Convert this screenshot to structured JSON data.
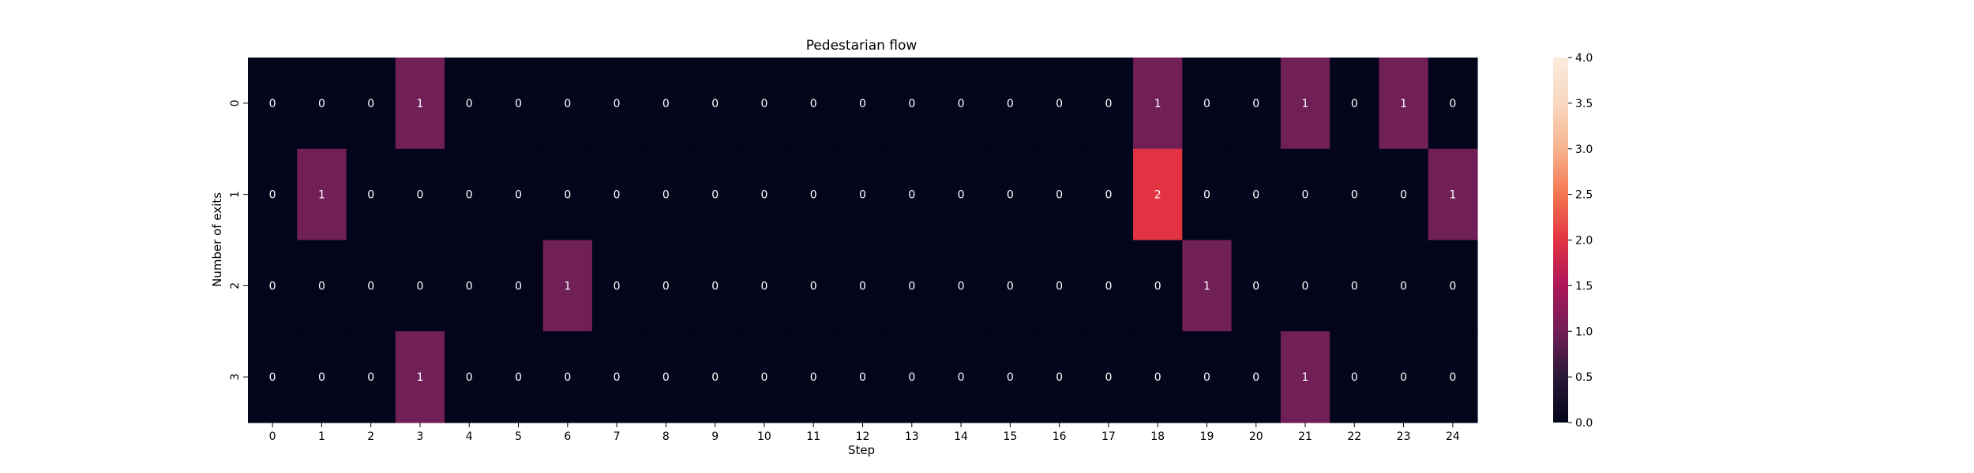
{
  "chart_data": {
    "type": "heatmap",
    "title": "Pedestarian flow",
    "xlabel": "Step",
    "ylabel": "Number of exits",
    "x_categories": [
      "0",
      "1",
      "2",
      "3",
      "4",
      "5",
      "6",
      "7",
      "8",
      "9",
      "10",
      "11",
      "12",
      "13",
      "14",
      "15",
      "16",
      "17",
      "18",
      "19",
      "20",
      "21",
      "22",
      "23",
      "24"
    ],
    "y_categories": [
      "0",
      "1",
      "2",
      "3"
    ],
    "values": [
      [
        0,
        0,
        0,
        1,
        0,
        0,
        0,
        0,
        0,
        0,
        0,
        0,
        0,
        0,
        0,
        0,
        0,
        0,
        1,
        0,
        0,
        1,
        0,
        1,
        0
      ],
      [
        0,
        1,
        0,
        0,
        0,
        0,
        0,
        0,
        0,
        0,
        0,
        0,
        0,
        0,
        0,
        0,
        0,
        0,
        2,
        0,
        0,
        0,
        0,
        0,
        1
      ],
      [
        0,
        0,
        0,
        0,
        0,
        0,
        1,
        0,
        0,
        0,
        0,
        0,
        0,
        0,
        0,
        0,
        0,
        0,
        0,
        1,
        0,
        0,
        0,
        0,
        0
      ],
      [
        0,
        0,
        0,
        1,
        0,
        0,
        0,
        0,
        0,
        0,
        0,
        0,
        0,
        0,
        0,
        0,
        0,
        0,
        0,
        0,
        0,
        1,
        0,
        0,
        0
      ]
    ],
    "colorbar": {
      "min": 0,
      "max": 4,
      "ticks": [
        "0.0",
        "0.5",
        "1.0",
        "1.5",
        "2.0",
        "2.5",
        "3.0",
        "3.5",
        "4.0"
      ],
      "colormap": "rocket"
    },
    "annotations": true,
    "grid": false,
    "legend": "colorbar-right"
  }
}
